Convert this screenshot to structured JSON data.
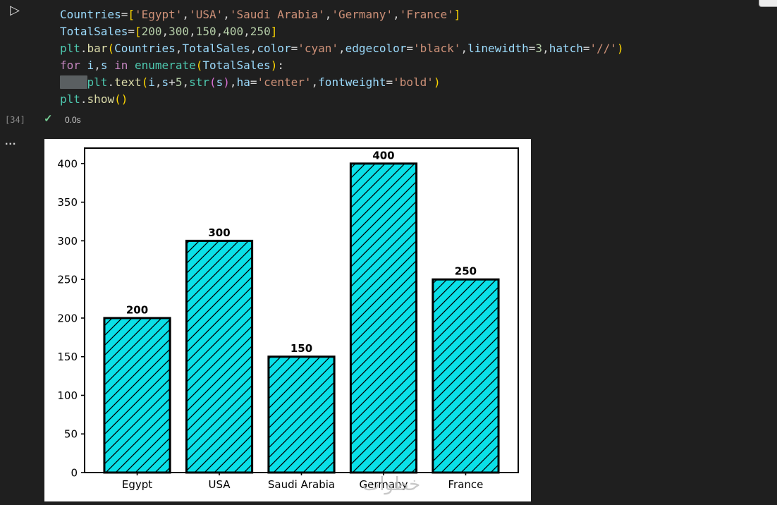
{
  "app": {
    "background": "#1f1f1f",
    "accent_colors": {
      "success": "#73C991",
      "bar_cyan": "#0AE0E8"
    }
  },
  "gutter": {
    "run_icon": "▷",
    "execution_count": "[34]",
    "check_icon": "✓",
    "execution_time": "0.0s",
    "more_icon": "..."
  },
  "code": {
    "lines": [
      [
        [
          "Countries",
          "v"
        ],
        [
          "=",
          "p"
        ],
        [
          "[",
          "b1"
        ],
        [
          "'Egypt'",
          "s"
        ],
        [
          ",",
          "p"
        ],
        [
          "'USA'",
          "s"
        ],
        [
          ",",
          "p"
        ],
        [
          "'Saudi Arabia'",
          "s"
        ],
        [
          ",",
          "p"
        ],
        [
          "'Germany'",
          "s"
        ],
        [
          ",",
          "p"
        ],
        [
          "'France'",
          "s"
        ],
        [
          "]",
          "b1"
        ]
      ],
      [
        [
          "TotalSales",
          "v"
        ],
        [
          "=",
          "p"
        ],
        [
          "[",
          "b1"
        ],
        [
          "200",
          "n"
        ],
        [
          ",",
          "p"
        ],
        [
          "300",
          "n"
        ],
        [
          ",",
          "p"
        ],
        [
          "150",
          "n"
        ],
        [
          ",",
          "p"
        ],
        [
          "400",
          "n"
        ],
        [
          ",",
          "p"
        ],
        [
          "250",
          "n"
        ],
        [
          "]",
          "b1"
        ]
      ],
      [
        [
          "plt",
          "m"
        ],
        [
          ".",
          "p"
        ],
        [
          "bar",
          "f"
        ],
        [
          "(",
          "b1"
        ],
        [
          "Countries",
          "v"
        ],
        [
          ",",
          "p"
        ],
        [
          "TotalSales",
          "v"
        ],
        [
          ",",
          "p"
        ],
        [
          "color",
          "v"
        ],
        [
          "=",
          "p"
        ],
        [
          "'cyan'",
          "s"
        ],
        [
          ",",
          "p"
        ],
        [
          "edgecolor",
          "v"
        ],
        [
          "=",
          "p"
        ],
        [
          "'black'",
          "s"
        ],
        [
          ",",
          "p"
        ],
        [
          "linewidth",
          "v"
        ],
        [
          "=",
          "p"
        ],
        [
          "3",
          "n"
        ],
        [
          ",",
          "p"
        ],
        [
          "hatch",
          "v"
        ],
        [
          "=",
          "p"
        ],
        [
          "'//'",
          "s"
        ],
        [
          ")",
          "b1"
        ]
      ],
      [
        [
          "for",
          "k"
        ],
        [
          " ",
          "p"
        ],
        [
          "i",
          "v"
        ],
        [
          ",",
          "p"
        ],
        [
          "s",
          "v"
        ],
        [
          " ",
          "p"
        ],
        [
          "in",
          "k"
        ],
        [
          " ",
          "p"
        ],
        [
          "enumerate",
          "m"
        ],
        [
          "(",
          "b1"
        ],
        [
          "TotalSales",
          "v"
        ],
        [
          ")",
          "b1"
        ],
        [
          ":",
          "p"
        ]
      ],
      [
        [
          "    ",
          "sel"
        ],
        [
          "plt",
          "m"
        ],
        [
          ".",
          "p"
        ],
        [
          "text",
          "f"
        ],
        [
          "(",
          "b1"
        ],
        [
          "i",
          "v"
        ],
        [
          ",",
          "p"
        ],
        [
          "s",
          "v"
        ],
        [
          "+",
          "p"
        ],
        [
          "5",
          "n"
        ],
        [
          ",",
          "p"
        ],
        [
          "str",
          "m"
        ],
        [
          "(",
          "b2"
        ],
        [
          "s",
          "v"
        ],
        [
          ")",
          "b2"
        ],
        [
          ",",
          "p"
        ],
        [
          "ha",
          "v"
        ],
        [
          "=",
          "p"
        ],
        [
          "'center'",
          "s"
        ],
        [
          ",",
          "p"
        ],
        [
          "fontweight",
          "v"
        ],
        [
          "=",
          "p"
        ],
        [
          "'bold'",
          "s"
        ],
        [
          ")",
          "b1"
        ]
      ],
      [
        [
          "plt",
          "m"
        ],
        [
          ".",
          "p"
        ],
        [
          "show",
          "f"
        ],
        [
          "(",
          "b1"
        ],
        [
          ")",
          "b1"
        ]
      ]
    ]
  },
  "chart_data": {
    "type": "bar",
    "categories": [
      "Egypt",
      "USA",
      "Saudi Arabia",
      "Germany",
      "France"
    ],
    "values": [
      200,
      300,
      150,
      400,
      250
    ],
    "value_labels": [
      "200",
      "300",
      "150",
      "400",
      "250"
    ],
    "title": "",
    "xlabel": "",
    "ylabel": "",
    "ylim": [
      0,
      420
    ],
    "yticks": [
      0,
      50,
      100,
      150,
      200,
      250,
      300,
      350,
      400
    ],
    "grid": false,
    "legend": false,
    "bar_fill": "#0AE0E8",
    "edge_color": "#000000",
    "edge_width": 3,
    "hatch": "//",
    "watermark": "خطوات"
  }
}
